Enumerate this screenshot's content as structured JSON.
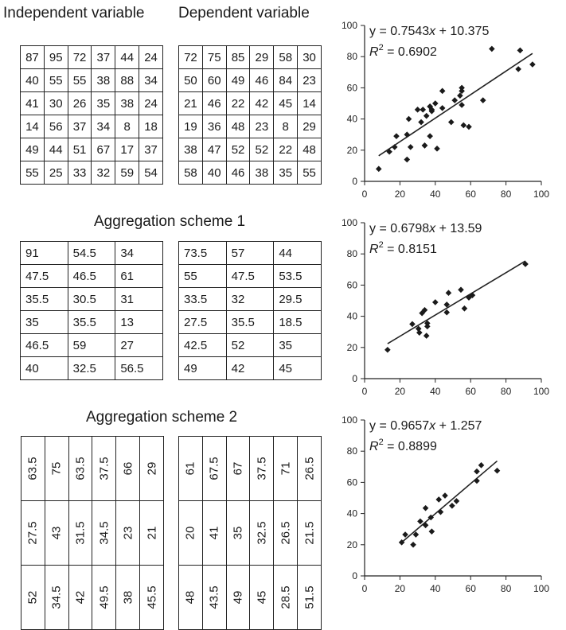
{
  "headers": {
    "independent": "Independent variable",
    "dependent": "Dependent variable",
    "scheme1": "Aggregation scheme 1",
    "scheme2": "Aggregation scheme 2"
  },
  "tables": {
    "original_independent": [
      [
        "87",
        "95",
        "72",
        "37",
        "44",
        "24"
      ],
      [
        "40",
        "55",
        "55",
        "38",
        "88",
        "34"
      ],
      [
        "41",
        "30",
        "26",
        "35",
        "38",
        "24"
      ],
      [
        "14",
        "56",
        "37",
        "34",
        "8",
        "18"
      ],
      [
        "49",
        "44",
        "51",
        "67",
        "17",
        "37"
      ],
      [
        "55",
        "25",
        "33",
        "32",
        "59",
        "54"
      ]
    ],
    "original_dependent": [
      [
        "72",
        "75",
        "85",
        "29",
        "58",
        "30"
      ],
      [
        "50",
        "60",
        "49",
        "46",
        "84",
        "23"
      ],
      [
        "21",
        "46",
        "22",
        "42",
        "45",
        "14"
      ],
      [
        "19",
        "36",
        "48",
        "23",
        "8",
        "29"
      ],
      [
        "38",
        "47",
        "52",
        "52",
        "22",
        "48"
      ],
      [
        "58",
        "40",
        "46",
        "38",
        "35",
        "55"
      ]
    ],
    "scheme1_independent": [
      [
        "91",
        "54.5",
        "34"
      ],
      [
        "47.5",
        "46.5",
        "61"
      ],
      [
        "35.5",
        "30.5",
        "31"
      ],
      [
        "35",
        "35.5",
        "13"
      ],
      [
        "46.5",
        "59",
        "27"
      ],
      [
        "40",
        "32.5",
        "56.5"
      ]
    ],
    "scheme1_dependent": [
      [
        "73.5",
        "57",
        "44"
      ],
      [
        "55",
        "47.5",
        "53.5"
      ],
      [
        "33.5",
        "32",
        "29.5"
      ],
      [
        "27.5",
        "35.5",
        "18.5"
      ],
      [
        "42.5",
        "52",
        "35"
      ],
      [
        "49",
        "42",
        "45"
      ]
    ],
    "scheme2_independent": [
      [
        "63.5",
        "75",
        "63.5",
        "37.5",
        "66",
        "29"
      ],
      [
        "27.5",
        "43",
        "31.5",
        "34.5",
        "23",
        "21"
      ],
      [
        "52",
        "34.5",
        "42",
        "49.5",
        "38",
        "45.5"
      ]
    ],
    "scheme2_dependent": [
      [
        "61",
        "67.5",
        "67",
        "37.5",
        "71",
        "26.5"
      ],
      [
        "20",
        "41",
        "35",
        "32.5",
        "26.5",
        "21.5"
      ],
      [
        "48",
        "43.5",
        "49",
        "45",
        "28.5",
        "51.5"
      ]
    ]
  },
  "chart_data": [
    {
      "type": "scatter",
      "xlim": [
        0,
        100
      ],
      "ylim": [
        0,
        100
      ],
      "xticks": [
        "0",
        "20",
        "40",
        "60",
        "80",
        "100"
      ],
      "yticks": [
        "0",
        "20",
        "40",
        "60",
        "80",
        "100"
      ],
      "equation": {
        "lhs": "y = 0.7543",
        "var": "x",
        "rhs": " + 10.375"
      },
      "r2_label": "R",
      "r2_sup": "2",
      "r2_value": " = 0.6902",
      "fit": {
        "slope": 0.7543,
        "intercept": 10.375
      },
      "x": [
        87,
        95,
        72,
        37,
        44,
        24,
        40,
        55,
        55,
        38,
        88,
        34,
        41,
        30,
        26,
        35,
        38,
        24,
        14,
        56,
        37,
        34,
        8,
        18,
        49,
        44,
        51,
        67,
        17,
        37,
        55,
        25,
        33,
        32,
        59,
        54
      ],
      "y": [
        72,
        75,
        85,
        29,
        58,
        30,
        50,
        60,
        49,
        46,
        84,
        23,
        21,
        46,
        22,
        42,
        45,
        14,
        19,
        36,
        48,
        23,
        8,
        29,
        38,
        47,
        52,
        52,
        22,
        48,
        58,
        40,
        46,
        38,
        35,
        55
      ]
    },
    {
      "type": "scatter",
      "xlim": [
        0,
        100
      ],
      "ylim": [
        0,
        100
      ],
      "xticks": [
        "0",
        "20",
        "40",
        "60",
        "80",
        "100"
      ],
      "yticks": [
        "0",
        "20",
        "40",
        "60",
        "80",
        "100"
      ],
      "equation": {
        "lhs": "y = 0.6798",
        "var": "x",
        "rhs": " + 13.59"
      },
      "r2_label": "R",
      "r2_sup": "2",
      "r2_value": " = 0.8151",
      "fit": {
        "slope": 0.6798,
        "intercept": 13.59
      },
      "x": [
        91,
        54.5,
        34,
        47.5,
        46.5,
        61,
        35.5,
        30.5,
        31,
        35,
        35.5,
        13,
        46.5,
        59,
        27,
        40,
        32.5,
        56.5
      ],
      "y": [
        73.5,
        57,
        44,
        55,
        47.5,
        53.5,
        33.5,
        32,
        29.5,
        27.5,
        35.5,
        18.5,
        42.5,
        52,
        35,
        49,
        42,
        45
      ]
    },
    {
      "type": "scatter",
      "xlim": [
        0,
        100
      ],
      "ylim": [
        0,
        100
      ],
      "xticks": [
        "0",
        "20",
        "40",
        "60",
        "80",
        "100"
      ],
      "yticks": [
        "0",
        "20",
        "40",
        "60",
        "80",
        "100"
      ],
      "equation": {
        "lhs": "y = 0.9657",
        "var": "x",
        "rhs": " + 1.257"
      },
      "r2_label": "R",
      "r2_sup": "2",
      "r2_value": " = 0.8899",
      "fit": {
        "slope": 0.9657,
        "intercept": 1.257
      },
      "x": [
        63.5,
        75,
        63.5,
        37.5,
        66,
        29,
        27.5,
        43,
        31.5,
        34.5,
        23,
        21,
        52,
        34.5,
        42,
        49.5,
        38,
        45.5
      ],
      "y": [
        61,
        67.5,
        67,
        37.5,
        71,
        26.5,
        20,
        41,
        35,
        32.5,
        26.5,
        21.5,
        48,
        43.5,
        49,
        45,
        28.5,
        51.5
      ]
    }
  ]
}
